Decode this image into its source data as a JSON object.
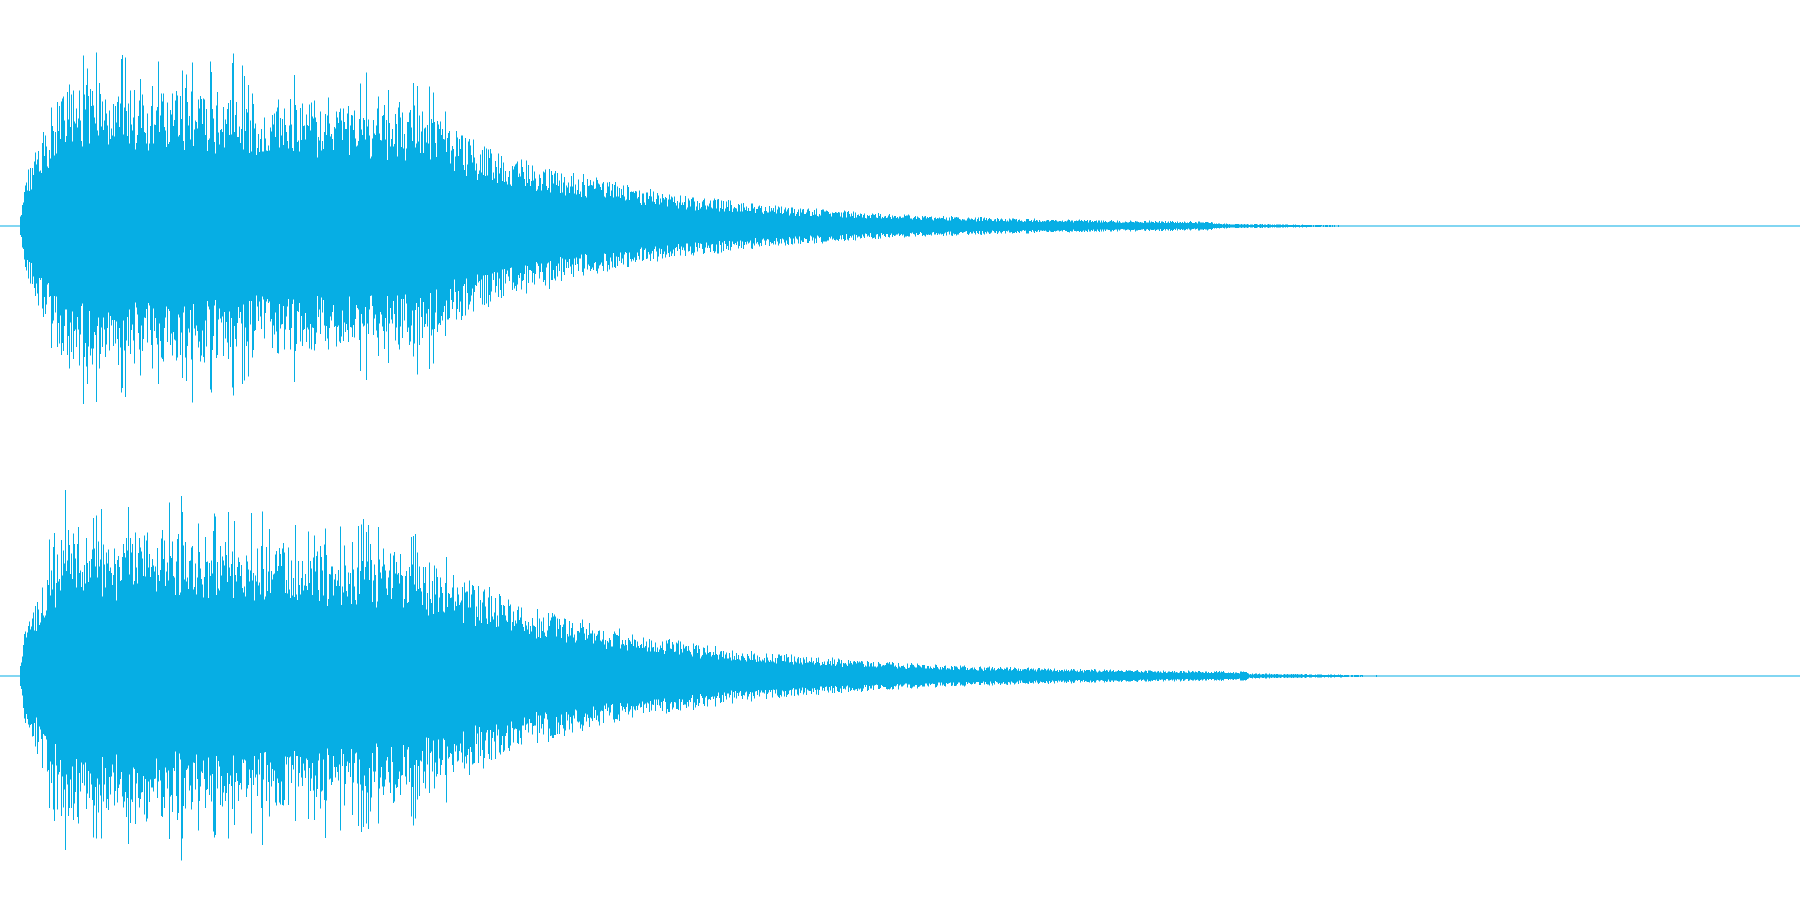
{
  "waveform": {
    "color": "#06aee4",
    "background": "#ffffff",
    "channels": [
      {
        "name": "",
        "peak_envelope": {
          "attack_peak": 0.98,
          "sustain_level": 0.82,
          "decay_end_fraction": 0.67,
          "tail_level": 0.015
        }
      },
      {
        "name": "",
        "peak_envelope": {
          "attack_peak": 0.98,
          "sustain_level": 0.8,
          "decay_end_fraction": 0.69,
          "tail_level": 0.015
        }
      }
    ]
  }
}
